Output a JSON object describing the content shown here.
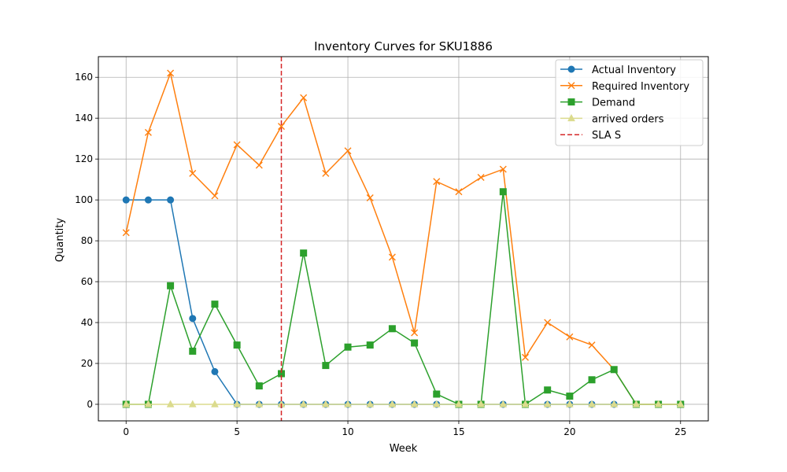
{
  "chart_data": {
    "type": "line",
    "title": "Inventory Curves for SKU1886",
    "xlabel": "Week",
    "ylabel": "Quantity",
    "xlim": [
      -1.25,
      26.25
    ],
    "ylim": [
      -8.1,
      170.1
    ],
    "xticks": [
      0,
      5,
      10,
      15,
      20,
      25
    ],
    "yticks": [
      0,
      20,
      40,
      60,
      80,
      100,
      120,
      140,
      160
    ],
    "grid": true,
    "legend_position": "top-right",
    "x": [
      0,
      1,
      2,
      3,
      4,
      5,
      6,
      7,
      8,
      9,
      10,
      11,
      12,
      13,
      14,
      15,
      16,
      17,
      18,
      19,
      20,
      21,
      22,
      23,
      24,
      25
    ],
    "series": [
      {
        "name": "Actual Inventory",
        "color": "#1f77b4",
        "marker": "circle",
        "values": [
          100,
          100,
          100,
          42,
          16,
          0,
          0,
          0,
          0,
          0,
          0,
          0,
          0,
          0,
          0,
          0,
          0,
          0,
          0,
          0,
          0,
          0,
          0,
          0,
          0,
          0
        ]
      },
      {
        "name": "Required Inventory",
        "color": "#ff7f0e",
        "marker": "x",
        "values": [
          84,
          133,
          162,
          113,
          102,
          127,
          117,
          136,
          150,
          113,
          124,
          101,
          72,
          35,
          109,
          104,
          111,
          115,
          23,
          40,
          33,
          29,
          17,
          0,
          0,
          0
        ]
      },
      {
        "name": "Demand",
        "color": "#2ca02c",
        "marker": "square",
        "values": [
          0,
          0,
          58,
          26,
          49,
          29,
          9,
          15,
          74,
          19,
          28,
          29,
          37,
          30,
          5,
          0,
          0,
          104,
          0,
          7,
          4,
          12,
          17,
          0,
          0,
          0
        ]
      },
      {
        "name": "arrived orders",
        "color": "#dbdb8d",
        "marker": "triangle",
        "values": [
          0,
          0,
          0,
          0,
          0,
          0,
          0,
          0,
          0,
          0,
          0,
          0,
          0,
          0,
          0,
          0,
          0,
          0,
          0,
          0,
          0,
          0,
          0,
          0,
          0,
          0
        ]
      }
    ],
    "vlines": [
      {
        "name": "SLA S",
        "x": 7,
        "color": "#d62728",
        "style": "dashed"
      }
    ]
  }
}
